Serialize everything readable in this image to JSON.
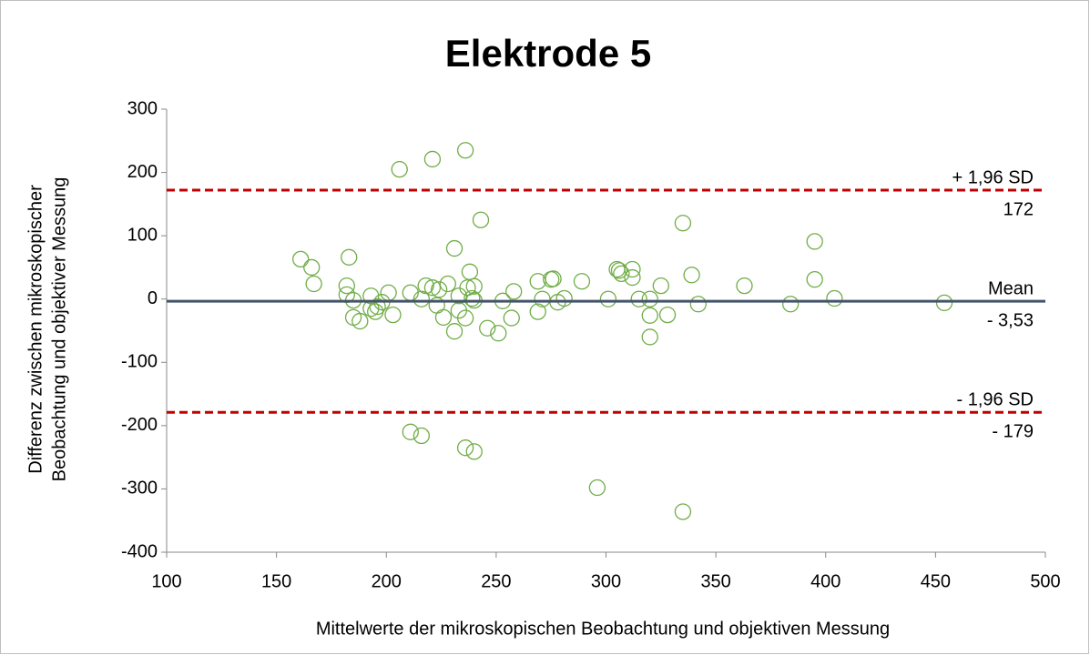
{
  "chart_data": {
    "type": "scatter",
    "title": "Elektrode 5",
    "xlabel": "Mittelwerte der mikroskopischen Beobachtung und objektiven Messung",
    "ylabel": [
      "Differenz zwischen mikroskopischer",
      "Beobachtung und objektiver Messung"
    ],
    "xlim": [
      100,
      500
    ],
    "xticks": [
      100,
      150,
      200,
      250,
      300,
      350,
      400,
      450,
      500
    ],
    "ylim": [
      -400,
      300
    ],
    "yticks": [
      -400,
      -300,
      -200,
      -100,
      0,
      100,
      200,
      300
    ],
    "grid": false,
    "series": [
      {
        "color": "#70ad47",
        "x": [
          161,
          166,
          167,
          183,
          182,
          182,
          185,
          185,
          188,
          193,
          193,
          195,
          196,
          198,
          201,
          203,
          206,
          211,
          211,
          216,
          216,
          218,
          221,
          221,
          223,
          224,
          226,
          228,
          231,
          231,
          233,
          233,
          236,
          236,
          236,
          237,
          238,
          239,
          240,
          240,
          240,
          243,
          246,
          251,
          253,
          257,
          258,
          269,
          269,
          271,
          275,
          276,
          278,
          281,
          289,
          296,
          301,
          305,
          306,
          307,
          312,
          312,
          315,
          320,
          320,
          320,
          325,
          328,
          335,
          335,
          339,
          342,
          363,
          384,
          395,
          395,
          404,
          454
        ],
        "values": [
          63,
          50,
          24,
          66,
          21,
          7,
          -2,
          -29,
          -35,
          -15,
          5,
          -20,
          -12,
          -5,
          10,
          -25,
          205,
          -210,
          10,
          -216,
          0,
          21,
          221,
          18,
          -10,
          15,
          -29,
          24,
          80,
          -51,
          5,
          -18,
          -235,
          235,
          -30,
          18,
          43,
          1,
          -241,
          20,
          -2,
          125,
          -46,
          -54,
          -3,
          -30,
          12,
          28,
          -20,
          0,
          31,
          32,
          -5,
          1,
          28,
          -298,
          0,
          47,
          45,
          40,
          47,
          34,
          0,
          0,
          -26,
          -60,
          21,
          -25,
          120,
          -336,
          38,
          -8,
          21,
          -8,
          91,
          31,
          1,
          -6
        ]
      }
    ],
    "lines": [
      {
        "name": "+ 1,96 SD",
        "value": 172,
        "label": "172",
        "color": "#c00000",
        "style": "dashed"
      },
      {
        "name": "Mean",
        "value": -3.53,
        "label": "- 3,53",
        "color": "#44546a",
        "style": "solid"
      },
      {
        "name": "- 1,96 SD",
        "value": -179,
        "label": "- 179",
        "color": "#c00000",
        "style": "dashed"
      }
    ]
  }
}
